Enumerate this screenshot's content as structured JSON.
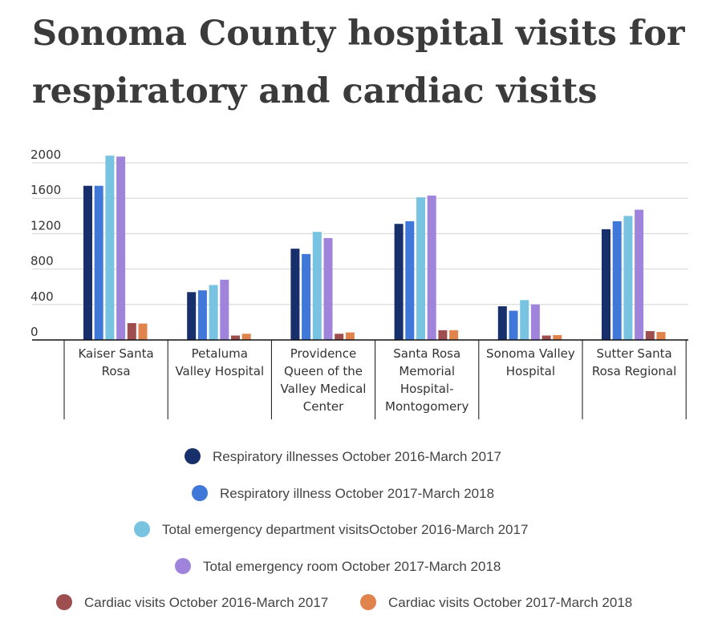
{
  "chart_data": {
    "type": "bar",
    "title": "Sonoma County hospital visits for respiratory and cardiac visits",
    "categories": [
      [
        "Kaiser Santa",
        "Rosa"
      ],
      [
        "Petaluma",
        "Valley Hospital"
      ],
      [
        "Providence",
        "Queen of the",
        "Valley Medical",
        "Center"
      ],
      [
        "Santa Rosa",
        "Memorial",
        "Hospital-",
        "Montogomery"
      ],
      [
        "Sonoma Valley",
        "Hospital"
      ],
      [
        "Sutter Santa",
        "Rosa Regional"
      ]
    ],
    "series": [
      {
        "name": "Respiratory illnesses October 2016-March 2017",
        "color": "#17306b",
        "values": [
          1740,
          540,
          1030,
          1310,
          380,
          1250
        ]
      },
      {
        "name": "Respiratory illness October 2017-March 2018",
        "color": "#3f78d8",
        "values": [
          1740,
          560,
          970,
          1340,
          330,
          1340
        ]
      },
      {
        "name": "Total emergency department visitsOctober 2016-March 2017",
        "color": "#79c3e2",
        "values": [
          2080,
          620,
          1220,
          1610,
          450,
          1400
        ]
      },
      {
        "name": "Total emergency room October 2017-March 2018",
        "color": "#a084dc",
        "values": [
          2070,
          680,
          1150,
          1630,
          400,
          1470
        ]
      },
      {
        "name": "Cardiac visits October 2016-March 2017",
        "color": "#9e4e4e",
        "values": [
          190,
          50,
          70,
          110,
          50,
          100
        ]
      },
      {
        "name": "Cardiac visits October 2017-March 2018",
        "color": "#e0834d",
        "values": [
          185,
          70,
          85,
          110,
          55,
          90
        ]
      }
    ],
    "yticks": [
      0,
      400,
      800,
      1200,
      1600,
      2000
    ],
    "ylim": [
      0,
      2000
    ],
    "xlabel": "",
    "ylabel": "",
    "grid": true,
    "legend_position": "bottom"
  }
}
